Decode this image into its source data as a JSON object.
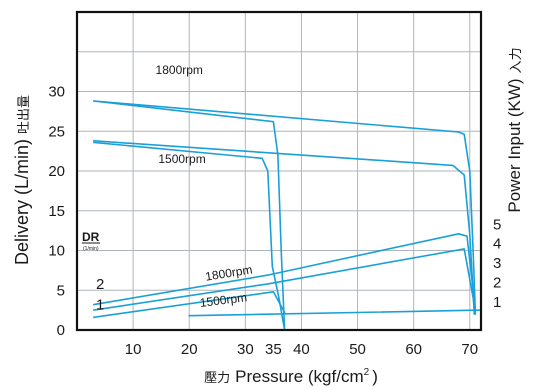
{
  "chart_data": {
    "type": "line",
    "xlabel_prefix": "壓力",
    "xlabel": "Pressure (kgf/cm",
    "xlabel_sup": "2",
    "xlabel_suffix": ")",
    "ylabel": "Delivery (L/min)",
    "ylabel_cjk": "吐出量",
    "y2label": "Power Input (KW)",
    "y2label_cjk": "入力",
    "xlim": [
      0,
      72
    ],
    "ylim": [
      0,
      40
    ],
    "x_ticks": [
      10,
      20,
      30,
      35,
      40,
      50,
      60,
      70
    ],
    "y_ticks": [
      0,
      5,
      10,
      15,
      20,
      25,
      30
    ],
    "y2_ticks": [
      1,
      2,
      3,
      4,
      5
    ],
    "y2_scale_note": "power axis: 1 kW per ~2.45 L/min, starting at ~2.5",
    "dr_label": "DR",
    "dr_sub": "(1/min)",
    "dr_ticks": [
      1,
      2
    ],
    "grid": true,
    "color": "#1aa0d8",
    "series": [
      {
        "name": "1800rpm",
        "kind": "delivery",
        "points": [
          [
            3,
            28.8
          ],
          [
            68,
            24.9
          ],
          [
            69,
            24.6
          ],
          [
            70,
            20
          ],
          [
            70.6,
            10
          ],
          [
            71,
            2
          ]
        ]
      },
      {
        "name": "1500rpm",
        "kind": "delivery",
        "points": [
          [
            3,
            23.8
          ],
          [
            67,
            20.7
          ],
          [
            69,
            19.5
          ],
          [
            70,
            12
          ],
          [
            70.8,
            2
          ]
        ]
      },
      {
        "name": "",
        "kind": "delivery-low",
        "points": [
          [
            3,
            23.6
          ],
          [
            33,
            21.6
          ],
          [
            34,
            20
          ],
          [
            34.8,
            8
          ],
          [
            36,
            4
          ],
          [
            37,
            0
          ]
        ]
      },
      {
        "name": "",
        "kind": "delivery-low",
        "points": [
          [
            3,
            28.8
          ],
          [
            35,
            26.2
          ],
          [
            35.8,
            22
          ],
          [
            36.4,
            10
          ],
          [
            37,
            0
          ]
        ]
      },
      {
        "name": "1800rpm",
        "kind": "power",
        "points": [
          [
            3,
            3.2
          ],
          [
            34,
            6.9
          ],
          [
            68,
            12.1
          ],
          [
            69.5,
            11.8
          ],
          [
            71,
            2.5
          ]
        ]
      },
      {
        "name": "",
        "kind": "power",
        "points": [
          [
            3,
            2.5
          ],
          [
            34,
            5.8
          ],
          [
            69,
            10.2
          ],
          [
            71,
            2.5
          ]
        ]
      },
      {
        "name": "1500rpm",
        "kind": "power",
        "points": [
          [
            3,
            1.6
          ],
          [
            35,
            4.8
          ],
          [
            37,
            2.2
          ]
        ]
      },
      {
        "name": "",
        "kind": "power",
        "points": [
          [
            20,
            1.8
          ],
          [
            72,
            2.5
          ]
        ]
      }
    ],
    "annotations": [
      {
        "text": "1800rpm",
        "x": 14,
        "y": 32.2,
        "angle": 0
      },
      {
        "text": "1500rpm",
        "x": 14.5,
        "y": 21.0,
        "angle": 0
      },
      {
        "text": "1800rpm",
        "x": 23,
        "y": 6.2,
        "angle": -9
      },
      {
        "text": "1500rpm",
        "x": 22,
        "y": 2.9,
        "angle": -7
      }
    ]
  }
}
